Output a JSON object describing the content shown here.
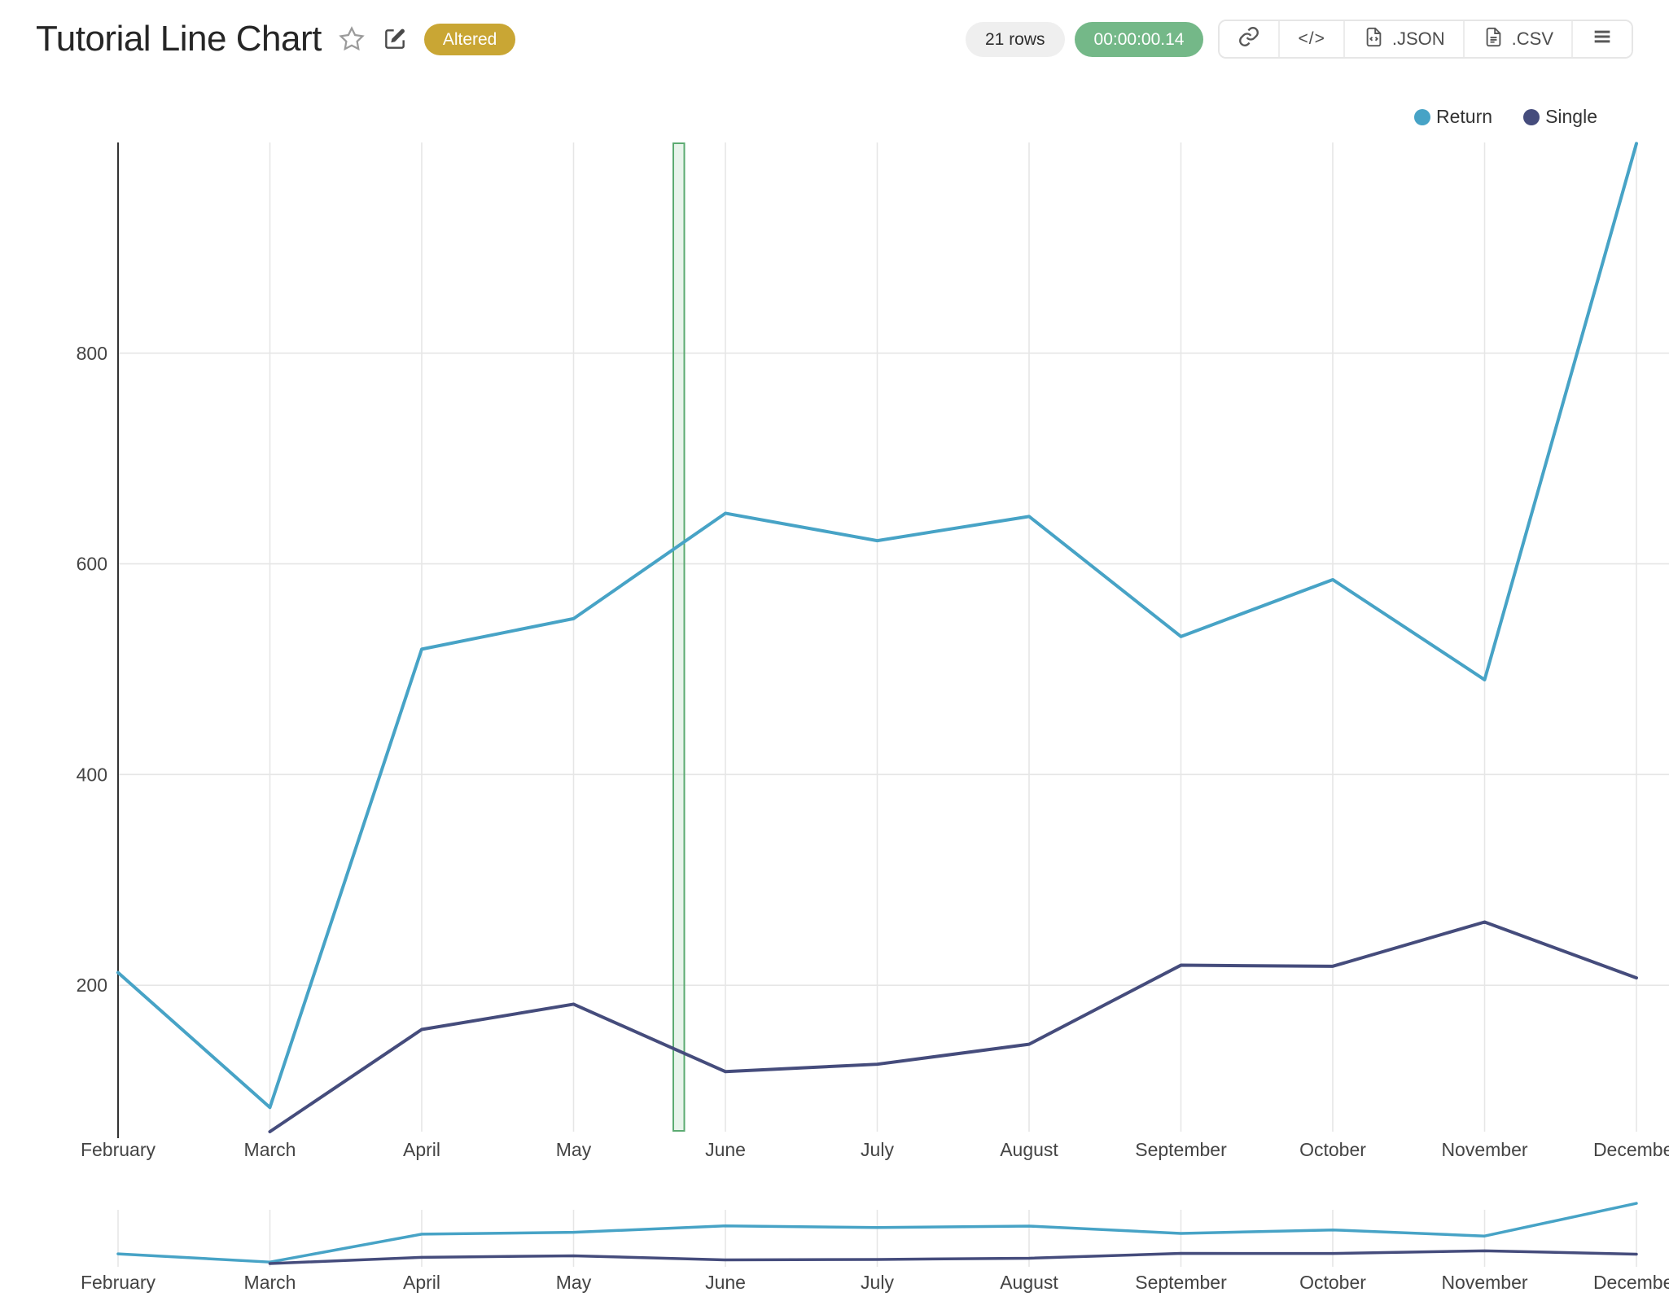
{
  "header": {
    "title": "Tutorial Line Chart",
    "status_badge": "Altered",
    "rows_count": "21 rows",
    "execution_time": "00:00:00.14"
  },
  "toolbar": {
    "buttons": [
      {
        "name": "share-link",
        "icon": "link-icon",
        "label": ""
      },
      {
        "name": "embed-code",
        "icon": "code-icon",
        "label": "</>"
      },
      {
        "name": "download-json",
        "icon": "file-code-icon",
        "label": ".JSON"
      },
      {
        "name": "download-csv",
        "icon": "file-text-icon",
        "label": ".CSV"
      },
      {
        "name": "more-menu",
        "icon": "hamburger-icon",
        "label": ""
      }
    ]
  },
  "legend": [
    {
      "label": "Return",
      "color": "#47a3c6"
    },
    {
      "label": "Single",
      "color": "#454c7c"
    }
  ],
  "chart_data": {
    "type": "line",
    "title": "Tutorial Line Chart",
    "categories": [
      "February",
      "March",
      "April",
      "May",
      "June",
      "July",
      "August",
      "September",
      "October",
      "November",
      "December"
    ],
    "series": [
      {
        "name": "Return",
        "color": "#47a3c6",
        "values": [
          212,
          84,
          519,
          548,
          648,
          622,
          645,
          531,
          585,
          490,
          999
        ]
      },
      {
        "name": "Single",
        "color": "#454c7c",
        "values": [
          null,
          61,
          158,
          182,
          118,
          125,
          144,
          219,
          218,
          260,
          207
        ]
      }
    ],
    "ylim": [
      60,
      1000
    ],
    "ytick_values": [
      200,
      400,
      600,
      800
    ],
    "grid": true,
    "legend_position": "top-right",
    "selection_band": {
      "between": [
        "May",
        "June"
      ],
      "color": "#5cab72",
      "fill": "rgba(95,175,115,0.14)"
    },
    "range_slider": true
  }
}
